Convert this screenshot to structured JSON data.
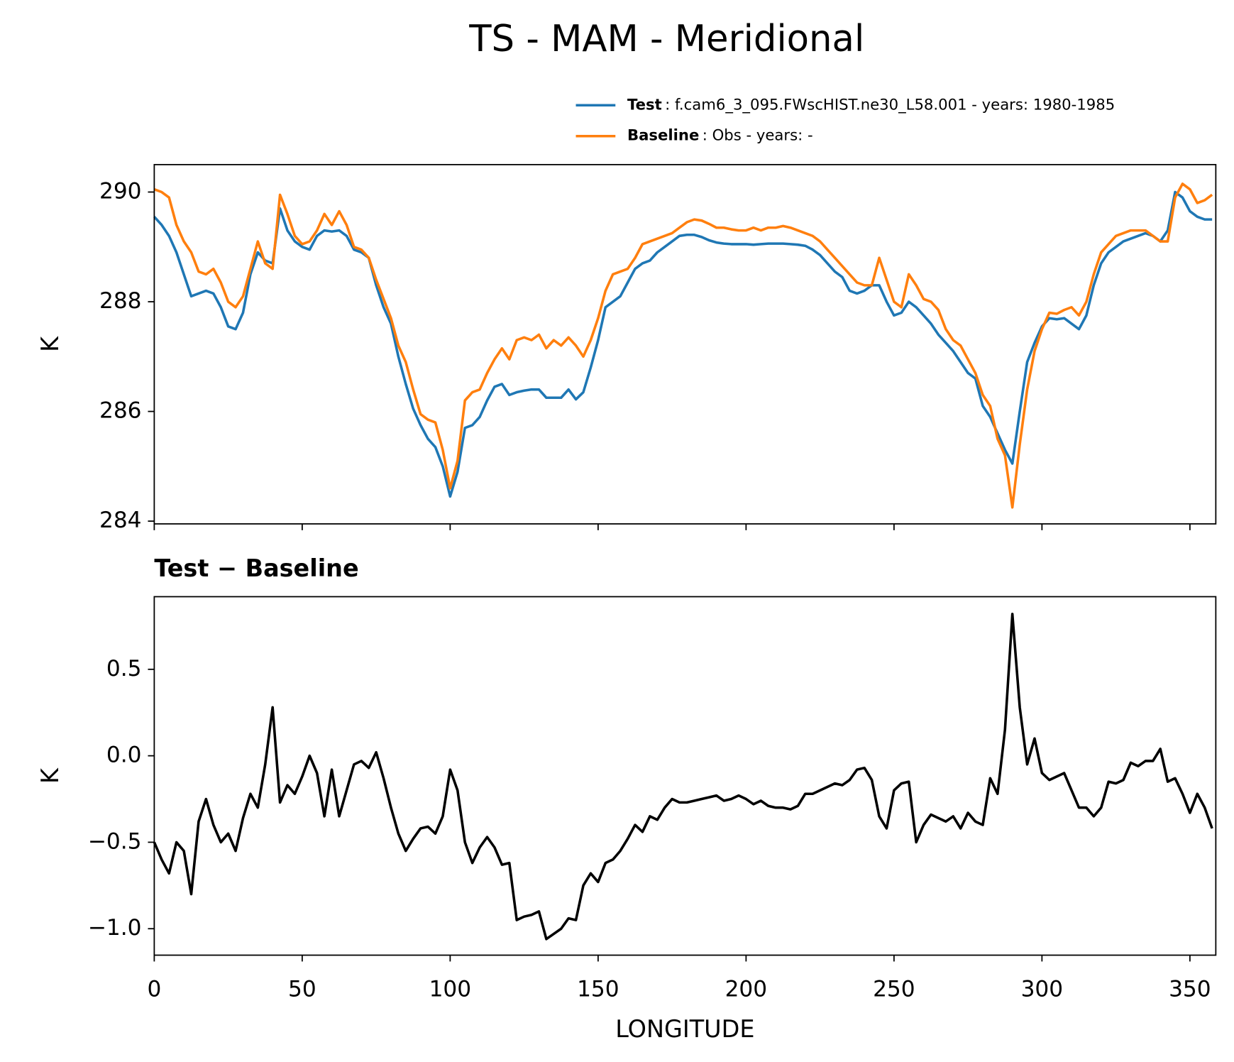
{
  "title": "TS - MAM - Meridional",
  "chart_data": [
    {
      "type": "line",
      "ylabel": "K",
      "x": [
        0,
        2.5,
        5,
        7.5,
        10,
        12.5,
        15,
        17.5,
        20,
        22.5,
        25,
        27.5,
        30,
        32.5,
        35,
        37.5,
        40,
        42.5,
        45,
        47.5,
        50,
        52.5,
        55,
        57.5,
        60,
        62.5,
        65,
        67.5,
        70,
        72.5,
        75,
        77.5,
        80,
        82.5,
        85,
        87.5,
        90,
        92.5,
        95,
        97.5,
        100,
        102.5,
        105,
        107.5,
        110,
        112.5,
        115,
        117.5,
        120,
        122.5,
        125,
        127.5,
        130,
        132.5,
        135,
        137.5,
        140,
        142.5,
        145,
        147.5,
        150,
        152.5,
        155,
        157.5,
        160,
        162.5,
        165,
        167.5,
        170,
        172.5,
        175,
        177.5,
        180,
        182.5,
        185,
        187.5,
        190,
        192.5,
        195,
        197.5,
        200,
        202.5,
        205,
        207.5,
        210,
        212.5,
        215,
        217.5,
        220,
        222.5,
        225,
        227.5,
        230,
        232.5,
        235,
        237.5,
        240,
        242.5,
        245,
        247.5,
        250,
        252.5,
        255,
        257.5,
        260,
        262.5,
        265,
        267.5,
        270,
        272.5,
        275,
        277.5,
        280,
        282.5,
        285,
        287.5,
        290,
        292.5,
        295,
        297.5,
        300,
        302.5,
        305,
        307.5,
        310,
        312.5,
        315,
        317.5,
        320,
        322.5,
        325,
        327.5,
        330,
        332.5,
        335,
        337.5,
        340,
        342.5,
        345,
        347.5,
        350,
        352.5,
        355,
        357.5
      ],
      "series": [
        {
          "name": "Test",
          "description": ": f.cam6_3_095.FWscHIST.ne30_L58.001 - years: 1980-1985",
          "color": "#1f77b4",
          "values": [
            289.55,
            289.4,
            289.2,
            288.9,
            288.5,
            288.1,
            288.15,
            288.2,
            288.15,
            287.9,
            287.55,
            287.5,
            287.8,
            288.5,
            288.9,
            288.75,
            288.7,
            289.7,
            289.3,
            289.1,
            289.0,
            288.95,
            289.2,
            289.3,
            289.28,
            289.3,
            289.2,
            288.95,
            288.9,
            288.8,
            288.3,
            287.9,
            287.6,
            287.0,
            286.5,
            286.05,
            285.75,
            285.5,
            285.35,
            285.0,
            284.45,
            284.9,
            285.7,
            285.75,
            285.9,
            286.2,
            286.45,
            286.5,
            286.3,
            286.35,
            286.38,
            286.4,
            286.4,
            286.25,
            286.25,
            286.25,
            286.4,
            286.22,
            286.35,
            286.8,
            287.3,
            287.9,
            288.0,
            288.1,
            288.35,
            288.6,
            288.7,
            288.75,
            288.9,
            289.0,
            289.1,
            289.2,
            289.22,
            289.22,
            289.18,
            289.12,
            289.08,
            289.06,
            289.05,
            289.05,
            289.05,
            289.04,
            289.05,
            289.06,
            289.06,
            289.06,
            289.05,
            289.04,
            289.02,
            288.95,
            288.85,
            288.7,
            288.55,
            288.45,
            288.2,
            288.15,
            288.2,
            288.3,
            288.3,
            288.0,
            287.75,
            287.8,
            288.0,
            287.9,
            287.75,
            287.6,
            287.4,
            287.25,
            287.1,
            286.9,
            286.7,
            286.6,
            286.1,
            285.9,
            285.6,
            285.3,
            285.05,
            286.0,
            286.9,
            287.25,
            287.55,
            287.7,
            287.68,
            287.7,
            287.6,
            287.5,
            287.75,
            288.3,
            288.7,
            288.9,
            289.0,
            289.1,
            289.15,
            289.2,
            289.25,
            289.2,
            289.1,
            289.3,
            290.0,
            289.9,
            289.65,
            289.55,
            289.5,
            289.5
          ]
        },
        {
          "name": "Baseline",
          "description": ": Obs - years: -",
          "color": "#ff7f0e",
          "values": [
            290.05,
            290.0,
            289.9,
            289.4,
            289.1,
            288.9,
            288.55,
            288.5,
            288.6,
            288.35,
            288.0,
            287.9,
            288.1,
            288.6,
            289.1,
            288.7,
            288.6,
            289.95,
            289.6,
            289.2,
            289.05,
            289.1,
            289.3,
            289.6,
            289.4,
            289.65,
            289.4,
            289.0,
            288.95,
            288.8,
            288.4,
            288.05,
            287.7,
            287.2,
            286.9,
            286.4,
            285.95,
            285.85,
            285.8,
            285.3,
            284.6,
            285.1,
            286.2,
            286.35,
            286.4,
            286.7,
            286.95,
            287.15,
            286.95,
            287.3,
            287.35,
            287.3,
            287.4,
            287.15,
            287.3,
            287.2,
            287.35,
            287.2,
            287.0,
            287.3,
            287.7,
            288.2,
            288.5,
            288.55,
            288.6,
            288.8,
            289.05,
            289.1,
            289.15,
            289.2,
            289.25,
            289.35,
            289.45,
            289.5,
            289.48,
            289.42,
            289.35,
            289.35,
            289.32,
            289.3,
            289.3,
            289.35,
            289.3,
            289.35,
            289.35,
            289.38,
            289.35,
            289.3,
            289.25,
            289.2,
            289.1,
            288.95,
            288.8,
            288.65,
            288.5,
            288.35,
            288.3,
            288.3,
            288.8,
            288.4,
            288.0,
            287.9,
            288.5,
            288.3,
            288.05,
            288.0,
            287.85,
            287.5,
            287.3,
            287.2,
            286.95,
            286.7,
            286.3,
            286.1,
            285.5,
            285.2,
            284.25,
            285.4,
            286.4,
            287.1,
            287.5,
            287.8,
            287.78,
            287.85,
            287.9,
            287.75,
            288.0,
            288.5,
            288.9,
            289.05,
            289.2,
            289.25,
            289.3,
            289.3,
            289.3,
            289.2,
            289.1,
            289.1,
            289.9,
            290.15,
            290.05,
            289.8,
            289.85,
            289.95
          ]
        }
      ],
      "xlim": [
        0,
        358.75
      ],
      "xticks": [
        0,
        50,
        100,
        150,
        200,
        250,
        300,
        350
      ],
      "xtick_labels": false,
      "ylim": [
        283.95,
        290.5
      ],
      "yticks": [
        284,
        286,
        288,
        290
      ],
      "legend": "upper right",
      "grid": false
    },
    {
      "type": "line",
      "title": "Test − Baseline",
      "xlabel": "LONGITUDE",
      "ylabel": "K",
      "x": [
        0,
        2.5,
        5,
        7.5,
        10,
        12.5,
        15,
        17.5,
        20,
        22.5,
        25,
        27.5,
        30,
        32.5,
        35,
        37.5,
        40,
        42.5,
        45,
        47.5,
        50,
        52.5,
        55,
        57.5,
        60,
        62.5,
        65,
        67.5,
        70,
        72.5,
        75,
        77.5,
        80,
        82.5,
        85,
        87.5,
        90,
        92.5,
        95,
        97.5,
        100,
        102.5,
        105,
        107.5,
        110,
        112.5,
        115,
        117.5,
        120,
        122.5,
        125,
        127.5,
        130,
        132.5,
        135,
        137.5,
        140,
        142.5,
        145,
        147.5,
        150,
        152.5,
        155,
        157.5,
        160,
        162.5,
        165,
        167.5,
        170,
        172.5,
        175,
        177.5,
        180,
        182.5,
        185,
        187.5,
        190,
        192.5,
        195,
        197.5,
        200,
        202.5,
        205,
        207.5,
        210,
        212.5,
        215,
        217.5,
        220,
        222.5,
        225,
        227.5,
        230,
        232.5,
        235,
        237.5,
        240,
        242.5,
        245,
        247.5,
        250,
        252.5,
        255,
        257.5,
        260,
        262.5,
        265,
        267.5,
        270,
        272.5,
        275,
        277.5,
        280,
        282.5,
        285,
        287.5,
        290,
        292.5,
        295,
        297.5,
        300,
        302.5,
        305,
        307.5,
        310,
        312.5,
        315,
        317.5,
        320,
        322.5,
        325,
        327.5,
        330,
        332.5,
        335,
        337.5,
        340,
        342.5,
        345,
        347.5,
        350,
        352.5,
        355,
        357.5
      ],
      "color": "#000000",
      "values": [
        -0.5,
        -0.6,
        -0.68,
        -0.5,
        -0.55,
        -0.8,
        -0.38,
        -0.25,
        -0.4,
        -0.5,
        -0.45,
        -0.55,
        -0.36,
        -0.22,
        -0.3,
        -0.05,
        0.28,
        -0.27,
        -0.17,
        -0.22,
        -0.12,
        0.0,
        -0.1,
        -0.35,
        -0.08,
        -0.35,
        -0.2,
        -0.05,
        -0.03,
        -0.07,
        0.02,
        -0.13,
        -0.3,
        -0.45,
        -0.55,
        -0.48,
        -0.42,
        -0.41,
        -0.45,
        -0.35,
        -0.08,
        -0.2,
        -0.5,
        -0.62,
        -0.53,
        -0.47,
        -0.53,
        -0.63,
        -0.62,
        -0.95,
        -0.93,
        -0.92,
        -0.9,
        -1.06,
        -1.03,
        -1.0,
        -0.94,
        -0.95,
        -0.75,
        -0.68,
        -0.73,
        -0.62,
        -0.6,
        -0.55,
        -0.48,
        -0.4,
        -0.44,
        -0.35,
        -0.37,
        -0.3,
        -0.25,
        -0.27,
        -0.27,
        -0.26,
        -0.25,
        -0.24,
        -0.23,
        -0.26,
        -0.25,
        -0.23,
        -0.25,
        -0.28,
        -0.26,
        -0.29,
        -0.3,
        -0.3,
        -0.31,
        -0.29,
        -0.22,
        -0.22,
        -0.2,
        -0.18,
        -0.16,
        -0.17,
        -0.14,
        -0.08,
        -0.07,
        -0.14,
        -0.35,
        -0.42,
        -0.2,
        -0.16,
        -0.15,
        -0.5,
        -0.4,
        -0.34,
        -0.36,
        -0.38,
        -0.35,
        -0.42,
        -0.33,
        -0.38,
        -0.4,
        -0.13,
        -0.22,
        0.15,
        0.82,
        0.28,
        -0.05,
        0.1,
        -0.1,
        -0.14,
        -0.12,
        -0.1,
        -0.2,
        -0.3,
        -0.3,
        -0.35,
        -0.3,
        -0.15,
        -0.16,
        -0.14,
        -0.04,
        -0.06,
        -0.03,
        -0.03,
        0.04,
        -0.15,
        -0.13,
        -0.22,
        -0.33,
        -0.22,
        -0.3,
        -0.42
      ],
      "xlim": [
        0,
        358.75
      ],
      "xticks": [
        0,
        50,
        100,
        150,
        200,
        250,
        300,
        350
      ],
      "xtick_labels": true,
      "ylim": [
        -1.153,
        0.92
      ],
      "yticks": [
        0.5,
        {
          "value": 0,
          "label": "0.0"
        },
        {
          "value": -0.5,
          "label": "−0.5"
        },
        {
          "value": -1,
          "label": "−1.0"
        }
      ],
      "grid": false
    }
  ]
}
